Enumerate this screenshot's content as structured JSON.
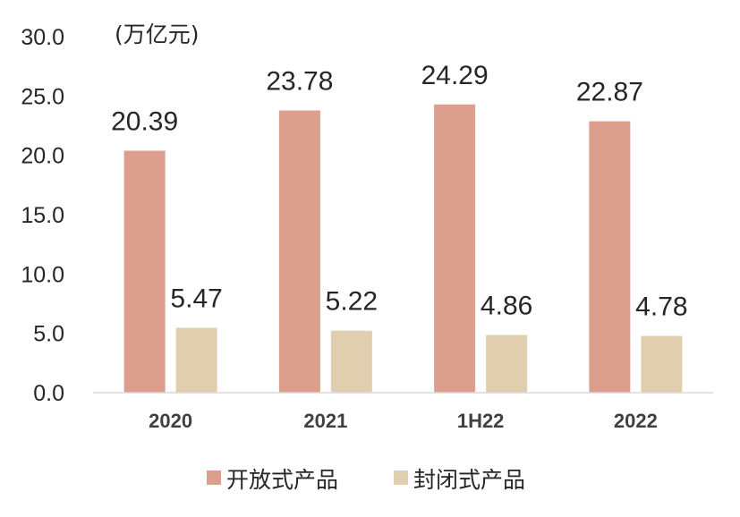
{
  "chart_data": {
    "type": "bar",
    "unit_label": "(万亿元)",
    "categories": [
      "2020",
      "2021",
      "1H22",
      "2022"
    ],
    "series": [
      {
        "name": "开放式产品",
        "color": "#DC9E8D",
        "values": [
          20.39,
          23.78,
          24.29,
          22.87
        ],
        "labels": [
          "20.39",
          "23.78",
          "24.29",
          "22.87"
        ]
      },
      {
        "name": "封闭式产品",
        "color": "#E1CEAE",
        "values": [
          5.47,
          5.22,
          4.86,
          4.78
        ],
        "labels": [
          "5.47",
          "5.22",
          "4.86",
          "4.78"
        ]
      }
    ],
    "ylim": [
      0,
      30
    ],
    "yticks": [
      0,
      5,
      10,
      15,
      20,
      25,
      30
    ],
    "ytick_labels": [
      "0.0",
      "5.0",
      "10.0",
      "15.0",
      "20.0",
      "25.0",
      "30.0"
    ],
    "legend_position": "bottom",
    "grid": false
  }
}
